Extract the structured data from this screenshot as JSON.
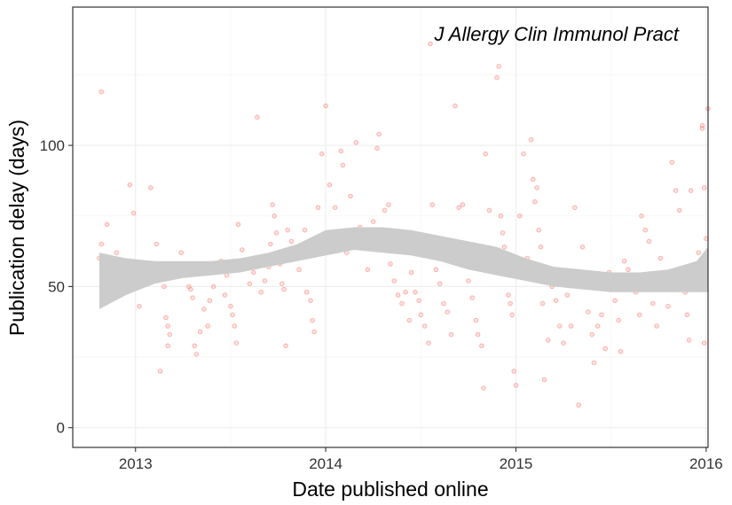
{
  "chart_data": {
    "type": "scatter",
    "annotation": "J Allergy Clin Immunol Pract",
    "xlabel": "Date published online",
    "ylabel": "Publication delay (days)",
    "x_ticks": [
      2013,
      2014,
      2015,
      2016
    ],
    "y_ticks": [
      0,
      50,
      100
    ],
    "xlim": [
      2012.67,
      2016.01
    ],
    "ylim": [
      -7,
      149
    ],
    "grid": true,
    "colors": {
      "points": "#f8766d",
      "band": "#cccccc",
      "panel_border": "#333333",
      "grid_major": "#ebebeb",
      "grid_minor": "#f5f5f5"
    },
    "points": [
      [
        2012.82,
        119
      ],
      [
        2012.81,
        60
      ],
      [
        2012.82,
        65
      ],
      [
        2012.85,
        72
      ],
      [
        2012.9,
        62
      ],
      [
        2012.94,
        58
      ],
      [
        2012.97,
        86
      ],
      [
        2012.99,
        76
      ],
      [
        2013.0,
        57
      ],
      [
        2013.02,
        43
      ],
      [
        2013.08,
        85
      ],
      [
        2013.11,
        65
      ],
      [
        2013.13,
        20
      ],
      [
        2013.15,
        50
      ],
      [
        2013.16,
        39
      ],
      [
        2013.17,
        36
      ],
      [
        2013.18,
        33
      ],
      [
        2013.17,
        29
      ],
      [
        2013.2,
        57
      ],
      [
        2013.24,
        62
      ],
      [
        2013.26,
        54
      ],
      [
        2013.28,
        50
      ],
      [
        2013.29,
        49
      ],
      [
        2013.3,
        46
      ],
      [
        2013.31,
        29
      ],
      [
        2013.32,
        26
      ],
      [
        2013.34,
        34
      ],
      [
        2013.36,
        42
      ],
      [
        2013.38,
        36
      ],
      [
        2013.39,
        45
      ],
      [
        2013.4,
        55
      ],
      [
        2013.41,
        50
      ],
      [
        2013.43,
        56
      ],
      [
        2013.45,
        59
      ],
      [
        2013.47,
        47
      ],
      [
        2013.48,
        54
      ],
      [
        2013.5,
        43
      ],
      [
        2013.51,
        40
      ],
      [
        2013.52,
        36
      ],
      [
        2013.53,
        30
      ],
      [
        2013.54,
        72
      ],
      [
        2013.56,
        63
      ],
      [
        2013.58,
        58
      ],
      [
        2013.6,
        51
      ],
      [
        2013.62,
        55
      ],
      [
        2013.64,
        110
      ],
      [
        2013.66,
        48
      ],
      [
        2013.68,
        52
      ],
      [
        2013.7,
        57
      ],
      [
        2013.71,
        65
      ],
      [
        2013.72,
        79
      ],
      [
        2013.73,
        75
      ],
      [
        2013.74,
        69
      ],
      [
        2013.75,
        62
      ],
      [
        2013.76,
        58
      ],
      [
        2013.77,
        51
      ],
      [
        2013.78,
        49
      ],
      [
        2013.79,
        29
      ],
      [
        2013.8,
        70
      ],
      [
        2013.82,
        66
      ],
      [
        2013.84,
        60
      ],
      [
        2013.86,
        56
      ],
      [
        2013.88,
        64
      ],
      [
        2013.89,
        70
      ],
      [
        2013.9,
        48
      ],
      [
        2013.92,
        45
      ],
      [
        2013.93,
        38
      ],
      [
        2013.94,
        34
      ],
      [
        2013.96,
        78
      ],
      [
        2013.98,
        97
      ],
      [
        2014.0,
        114
      ],
      [
        2014.02,
        86
      ],
      [
        2014.04,
        66
      ],
      [
        2014.05,
        78
      ],
      [
        2014.08,
        98
      ],
      [
        2014.09,
        93
      ],
      [
        2014.11,
        62
      ],
      [
        2014.13,
        82
      ],
      [
        2014.16,
        101
      ],
      [
        2014.18,
        71
      ],
      [
        2014.22,
        56
      ],
      [
        2014.24,
        70
      ],
      [
        2014.25,
        73
      ],
      [
        2014.27,
        99
      ],
      [
        2014.28,
        104
      ],
      [
        2014.3,
        65
      ],
      [
        2014.31,
        77
      ],
      [
        2014.33,
        79
      ],
      [
        2014.34,
        58
      ],
      [
        2014.36,
        52
      ],
      [
        2014.38,
        47
      ],
      [
        2014.4,
        44
      ],
      [
        2014.42,
        48
      ],
      [
        2014.44,
        38
      ],
      [
        2014.45,
        55
      ],
      [
        2014.47,
        48
      ],
      [
        2014.49,
        45
      ],
      [
        2014.5,
        40
      ],
      [
        2014.52,
        36
      ],
      [
        2014.54,
        30
      ],
      [
        2014.55,
        136
      ],
      [
        2014.56,
        79
      ],
      [
        2014.58,
        56
      ],
      [
        2014.6,
        51
      ],
      [
        2014.62,
        44
      ],
      [
        2014.64,
        41
      ],
      [
        2014.66,
        33
      ],
      [
        2014.68,
        114
      ],
      [
        2014.7,
        78
      ],
      [
        2014.72,
        79
      ],
      [
        2014.73,
        63
      ],
      [
        2014.75,
        52
      ],
      [
        2014.77,
        46
      ],
      [
        2014.79,
        38
      ],
      [
        2014.8,
        33
      ],
      [
        2014.82,
        29
      ],
      [
        2014.83,
        14
      ],
      [
        2014.84,
        97
      ],
      [
        2014.86,
        77
      ],
      [
        2014.88,
        62
      ],
      [
        2014.9,
        124
      ],
      [
        2014.91,
        128
      ],
      [
        2014.92,
        75
      ],
      [
        2014.93,
        69
      ],
      [
        2014.94,
        64
      ],
      [
        2014.95,
        59
      ],
      [
        2014.96,
        47
      ],
      [
        2014.97,
        44
      ],
      [
        2014.98,
        40
      ],
      [
        2014.99,
        20
      ],
      [
        2015.0,
        15
      ],
      [
        2015.02,
        75
      ],
      [
        2015.04,
        97
      ],
      [
        2015.06,
        60
      ],
      [
        2015.08,
        102
      ],
      [
        2015.09,
        88
      ],
      [
        2015.1,
        80
      ],
      [
        2015.11,
        85
      ],
      [
        2015.12,
        70
      ],
      [
        2015.13,
        64
      ],
      [
        2015.14,
        44
      ],
      [
        2015.15,
        17
      ],
      [
        2015.17,
        31
      ],
      [
        2015.19,
        50
      ],
      [
        2015.21,
        45
      ],
      [
        2015.23,
        36
      ],
      [
        2015.25,
        30
      ],
      [
        2015.27,
        47
      ],
      [
        2015.29,
        36
      ],
      [
        2015.31,
        78
      ],
      [
        2015.33,
        8
      ],
      [
        2015.35,
        64
      ],
      [
        2015.36,
        52
      ],
      [
        2015.38,
        41
      ],
      [
        2015.4,
        33
      ],
      [
        2015.41,
        23
      ],
      [
        2015.43,
        36
      ],
      [
        2015.45,
        40
      ],
      [
        2015.47,
        28
      ],
      [
        2015.49,
        55
      ],
      [
        2015.5,
        49
      ],
      [
        2015.52,
        45
      ],
      [
        2015.54,
        38
      ],
      [
        2015.55,
        27
      ],
      [
        2015.57,
        59
      ],
      [
        2015.59,
        56
      ],
      [
        2015.61,
        51
      ],
      [
        2015.63,
        48
      ],
      [
        2015.65,
        40
      ],
      [
        2015.66,
        75
      ],
      [
        2015.68,
        70
      ],
      [
        2015.7,
        66
      ],
      [
        2015.72,
        44
      ],
      [
        2015.74,
        36
      ],
      [
        2015.76,
        60
      ],
      [
        2015.77,
        54
      ],
      [
        2015.79,
        49
      ],
      [
        2015.8,
        43
      ],
      [
        2015.82,
        94
      ],
      [
        2015.84,
        84
      ],
      [
        2015.86,
        77
      ],
      [
        2015.87,
        55
      ],
      [
        2015.89,
        48
      ],
      [
        2015.9,
        40
      ],
      [
        2015.91,
        31
      ],
      [
        2015.92,
        84
      ],
      [
        2015.94,
        54
      ],
      [
        2015.96,
        62
      ],
      [
        2015.97,
        49
      ],
      [
        2015.98,
        107
      ],
      [
        2015.99,
        85
      ],
      [
        2016.0,
        67
      ],
      [
        2016.0,
        50
      ],
      [
        2015.99,
        30
      ],
      [
        2016.01,
        113
      ],
      [
        2015.98,
        106
      ]
    ],
    "smooth_band": {
      "x": [
        2012.81,
        2012.95,
        2013.1,
        2013.25,
        2013.4,
        2013.55,
        2013.7,
        2013.85,
        2014.0,
        2014.15,
        2014.3,
        2014.45,
        2014.6,
        2014.75,
        2014.9,
        2015.05,
        2015.2,
        2015.35,
        2015.5,
        2015.65,
        2015.8,
        2015.95,
        2016.01
      ],
      "upper": [
        62,
        60,
        59,
        59,
        59,
        60,
        62,
        65,
        70,
        71,
        71,
        70,
        68,
        66,
        64,
        60,
        57,
        56,
        55,
        55,
        56,
        59,
        64
      ],
      "lower": [
        42,
        47,
        51,
        53,
        54,
        55,
        57,
        59,
        61,
        63,
        62,
        61,
        59,
        56,
        54,
        52,
        50,
        49,
        48,
        48,
        48,
        48,
        48
      ]
    }
  }
}
